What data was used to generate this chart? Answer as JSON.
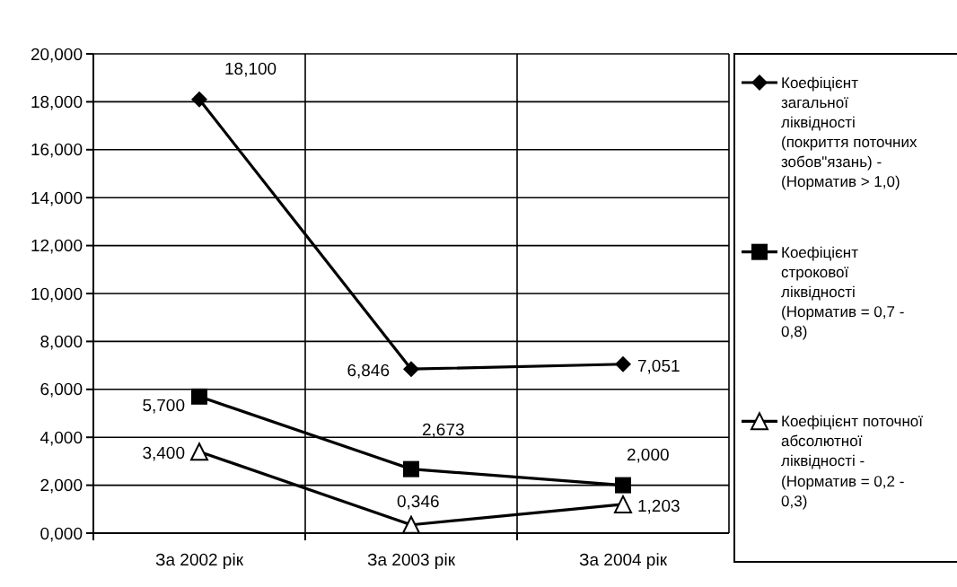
{
  "chart_data": {
    "type": "line",
    "categories": [
      "За 2002 рік",
      "За 2003 рік",
      "За 2004 рік"
    ],
    "ylim": [
      0,
      20
    ],
    "yticks": [
      {
        "value": 0,
        "label": "0,000"
      },
      {
        "value": 2,
        "label": "2,000"
      },
      {
        "value": 4,
        "label": "4,000"
      },
      {
        "value": 6,
        "label": "6,000"
      },
      {
        "value": 8,
        "label": "8,000"
      },
      {
        "value": 10,
        "label": "10,000"
      },
      {
        "value": 12,
        "label": "12,000"
      },
      {
        "value": 14,
        "label": "14,000"
      },
      {
        "value": 16,
        "label": "16,000"
      },
      {
        "value": 18,
        "label": "18,000"
      },
      {
        "value": 20,
        "label": "20,000"
      }
    ],
    "grid": true,
    "legend": "right",
    "series": [
      {
        "name": "Коефіцієнт загальної ліквідності (покриття поточних зобов\"язань) - (Норматив > 1,0)",
        "color": "#000000",
        "marker": "diamond",
        "values": [
          18.1,
          6.846,
          7.051
        ],
        "value_labels": [
          "18,100",
          "6,846",
          "7,051"
        ]
      },
      {
        "name": "Коефіцієнт строкової ліквідності (Норматив = 0,7 - 0,8)",
        "color": "#000000",
        "marker": "square",
        "values": [
          5.7,
          2.673,
          2.0
        ],
        "value_labels": [
          "5,700",
          "2,673",
          "2,000"
        ]
      },
      {
        "name": "Коефіцієнт поточної абсолютної ліквідності - (Норматив = 0,2 - 0,3)",
        "color": "#000000",
        "marker": "triangle",
        "values": [
          3.4,
          0.346,
          1.203
        ],
        "value_labels": [
          "3,400",
          "0,346",
          "1,203"
        ]
      }
    ]
  }
}
